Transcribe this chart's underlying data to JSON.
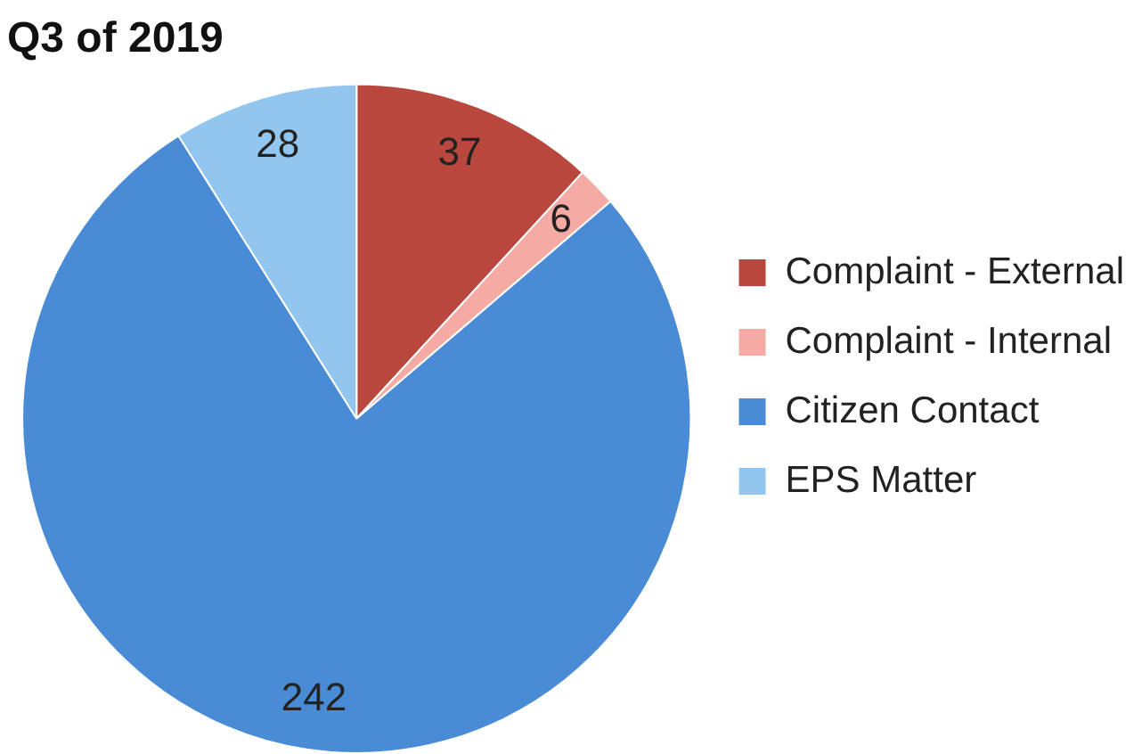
{
  "chart_data": {
    "type": "pie",
    "title": "Q3 of 2019",
    "categories": [
      "Complaint - External",
      "Complaint - Internal",
      "Citizen Contact",
      "EPS Matter"
    ],
    "values": [
      37,
      6,
      242,
      28
    ],
    "colors": [
      "#b9473d",
      "#f5aaa4",
      "#4a8bd6",
      "#93c6ef"
    ],
    "data_labels": true,
    "legend": "right"
  }
}
